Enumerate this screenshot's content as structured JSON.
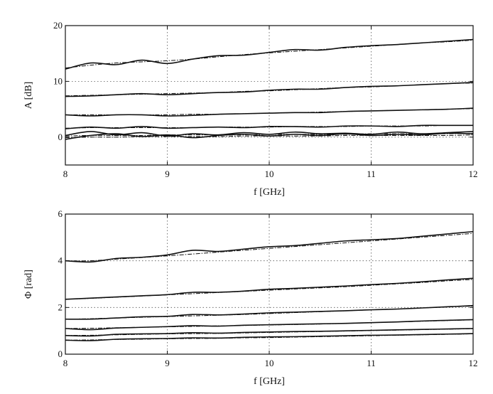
{
  "chart_data": [
    {
      "type": "line",
      "xlabel": "f [GHz]",
      "ylabel": "A [dB]",
      "xlim": [
        8,
        12
      ],
      "ylim": [
        -5,
        20
      ],
      "xticks": [
        8,
        9,
        10,
        11,
        12
      ],
      "yticks": [
        0,
        10,
        20
      ],
      "grid": true,
      "x": [
        8,
        8.25,
        8.5,
        8.75,
        9,
        9.25,
        9.5,
        9.75,
        10,
        10.25,
        10.5,
        10.75,
        11,
        11.25,
        11.5,
        11.75,
        12
      ],
      "series": [
        {
          "style": "solid",
          "values": [
            12.2,
            13.3,
            13.0,
            13.8,
            13.2,
            14.0,
            14.6,
            14.7,
            15.2,
            15.7,
            15.6,
            16.1,
            16.4,
            16.6,
            16.9,
            17.2,
            17.5
          ]
        },
        {
          "style": "dash-dot",
          "values": [
            12.4,
            12.9,
            13.3,
            13.5,
            13.7,
            14.0,
            14.4,
            14.8,
            15.1,
            15.4,
            15.7,
            16.0,
            16.3,
            16.6,
            16.9,
            17.1,
            17.4
          ]
        },
        {
          "style": "solid",
          "values": [
            7.3,
            7.4,
            7.6,
            7.8,
            7.6,
            7.8,
            8.0,
            8.1,
            8.4,
            8.6,
            8.6,
            8.9,
            9.1,
            9.2,
            9.4,
            9.6,
            9.8
          ]
        },
        {
          "style": "dash-dot",
          "values": [
            7.4,
            7.5,
            7.6,
            7.7,
            7.8,
            7.9,
            8.0,
            8.2,
            8.3,
            8.5,
            8.7,
            8.9,
            9.0,
            9.2,
            9.4,
            9.6,
            9.7
          ]
        },
        {
          "style": "solid",
          "values": [
            4.0,
            3.8,
            4.0,
            4.0,
            3.8,
            3.9,
            4.1,
            4.2,
            4.3,
            4.4,
            4.4,
            4.6,
            4.7,
            4.8,
            4.9,
            5.0,
            5.2
          ]
        },
        {
          "style": "dash-dot",
          "values": [
            4.0,
            4.0,
            4.0,
            4.0,
            4.0,
            4.1,
            4.1,
            4.2,
            4.3,
            4.4,
            4.5,
            4.6,
            4.7,
            4.8,
            4.9,
            5.0,
            5.1
          ]
        },
        {
          "style": "solid",
          "values": [
            1.5,
            1.8,
            1.6,
            1.9,
            1.6,
            1.7,
            1.8,
            1.7,
            1.9,
            1.9,
            1.8,
            2.0,
            2.0,
            1.9,
            2.1,
            2.1,
            2.1
          ]
        },
        {
          "style": "dash-dot",
          "values": [
            1.6,
            1.7,
            1.7,
            1.7,
            1.7,
            1.7,
            1.8,
            1.8,
            1.8,
            1.9,
            1.9,
            1.9,
            2.0,
            2.0,
            2.0,
            2.1,
            2.1
          ]
        },
        {
          "style": "solid",
          "values": [
            0.3,
            1.0,
            0.4,
            0.8,
            0.2,
            0.6,
            0.4,
            0.8,
            0.5,
            0.9,
            0.6,
            0.7,
            0.5,
            0.9,
            0.6,
            0.8,
            1.0
          ]
        },
        {
          "style": "solid",
          "values": [
            -0.4,
            0.3,
            0.6,
            0.1,
            0.4,
            -0.1,
            0.3,
            0.5,
            0.2,
            0.5,
            0.3,
            0.6,
            0.3,
            0.5,
            0.4,
            0.7,
            0.6
          ]
        },
        {
          "style": "dash-dot",
          "values": [
            0.2,
            0.3,
            0.3,
            0.3,
            0.4,
            0.4,
            0.4,
            0.4,
            0.5,
            0.5,
            0.5,
            0.5,
            0.6,
            0.6,
            0.6,
            0.6,
            0.7
          ]
        },
        {
          "style": "dash-dot",
          "values": [
            -0.1,
            0.0,
            0.0,
            0.1,
            0.1,
            0.1,
            0.1,
            0.2,
            0.2,
            0.2,
            0.2,
            0.3,
            0.3,
            0.3,
            0.3,
            0.3,
            0.4
          ]
        }
      ]
    },
    {
      "type": "line",
      "xlabel": "f [GHz]",
      "ylabel": "Φ [rad]",
      "xlim": [
        8,
        12
      ],
      "ylim": [
        0,
        6
      ],
      "xticks": [
        8,
        9,
        10,
        11,
        12
      ],
      "yticks": [
        0,
        2,
        4,
        6
      ],
      "grid": true,
      "x": [
        8,
        8.25,
        8.5,
        8.75,
        9,
        9.25,
        9.5,
        9.75,
        10,
        10.25,
        10.5,
        10.75,
        11,
        11.25,
        11.5,
        11.75,
        12
      ],
      "series": [
        {
          "style": "solid",
          "values": [
            4.0,
            3.95,
            4.1,
            4.15,
            4.25,
            4.45,
            4.4,
            4.5,
            4.6,
            4.65,
            4.75,
            4.85,
            4.9,
            4.95,
            5.05,
            5.15,
            5.25
          ]
        },
        {
          "style": "dash-dot",
          "values": [
            4.0,
            4.0,
            4.07,
            4.14,
            4.21,
            4.29,
            4.37,
            4.45,
            4.53,
            4.61,
            4.69,
            4.77,
            4.85,
            4.93,
            5.01,
            5.09,
            5.17
          ]
        },
        {
          "style": "solid",
          "values": [
            2.35,
            2.4,
            2.45,
            2.5,
            2.55,
            2.65,
            2.65,
            2.7,
            2.78,
            2.82,
            2.87,
            2.92,
            2.98,
            3.03,
            3.1,
            3.18,
            3.25
          ]
        },
        {
          "style": "dash-dot",
          "values": [
            2.35,
            2.39,
            2.44,
            2.49,
            2.54,
            2.59,
            2.64,
            2.69,
            2.74,
            2.79,
            2.84,
            2.89,
            2.95,
            3.01,
            3.07,
            3.14,
            3.2
          ]
        },
        {
          "style": "solid",
          "values": [
            1.5,
            1.5,
            1.55,
            1.6,
            1.62,
            1.7,
            1.68,
            1.72,
            1.77,
            1.8,
            1.83,
            1.86,
            1.9,
            1.93,
            1.98,
            2.03,
            2.08
          ]
        },
        {
          "style": "dash-dot",
          "values": [
            1.5,
            1.52,
            1.55,
            1.58,
            1.61,
            1.64,
            1.67,
            1.7,
            1.74,
            1.78,
            1.82,
            1.86,
            1.9,
            1.94,
            1.98,
            2.02,
            2.06
          ]
        },
        {
          "style": "solid",
          "values": [
            1.1,
            1.05,
            1.12,
            1.15,
            1.18,
            1.22,
            1.2,
            1.24,
            1.26,
            1.28,
            1.3,
            1.32,
            1.35,
            1.38,
            1.42,
            1.45,
            1.48
          ]
        },
        {
          "style": "dash-dot",
          "values": [
            1.1,
            1.11,
            1.13,
            1.15,
            1.17,
            1.19,
            1.21,
            1.23,
            1.25,
            1.27,
            1.29,
            1.32,
            1.35,
            1.38,
            1.41,
            1.44,
            1.47
          ]
        },
        {
          "style": "solid",
          "values": [
            0.8,
            0.78,
            0.85,
            0.87,
            0.88,
            0.92,
            0.9,
            0.93,
            0.95,
            0.97,
            0.98,
            1.0,
            1.02,
            1.04,
            1.06,
            1.08,
            1.1
          ]
        },
        {
          "style": "dash-dot",
          "values": [
            0.8,
            0.81,
            0.83,
            0.85,
            0.87,
            0.88,
            0.89,
            0.91,
            0.93,
            0.95,
            0.97,
            0.99,
            1.01,
            1.03,
            1.05,
            1.07,
            1.09
          ]
        },
        {
          "style": "solid",
          "values": [
            0.6,
            0.58,
            0.64,
            0.66,
            0.67,
            0.7,
            0.69,
            0.72,
            0.74,
            0.75,
            0.77,
            0.79,
            0.81,
            0.82,
            0.84,
            0.86,
            0.88
          ]
        },
        {
          "style": "dash-dot",
          "values": [
            0.6,
            0.61,
            0.63,
            0.64,
            0.66,
            0.67,
            0.68,
            0.7,
            0.71,
            0.73,
            0.75,
            0.77,
            0.79,
            0.81,
            0.83,
            0.85,
            0.87
          ]
        }
      ]
    }
  ]
}
